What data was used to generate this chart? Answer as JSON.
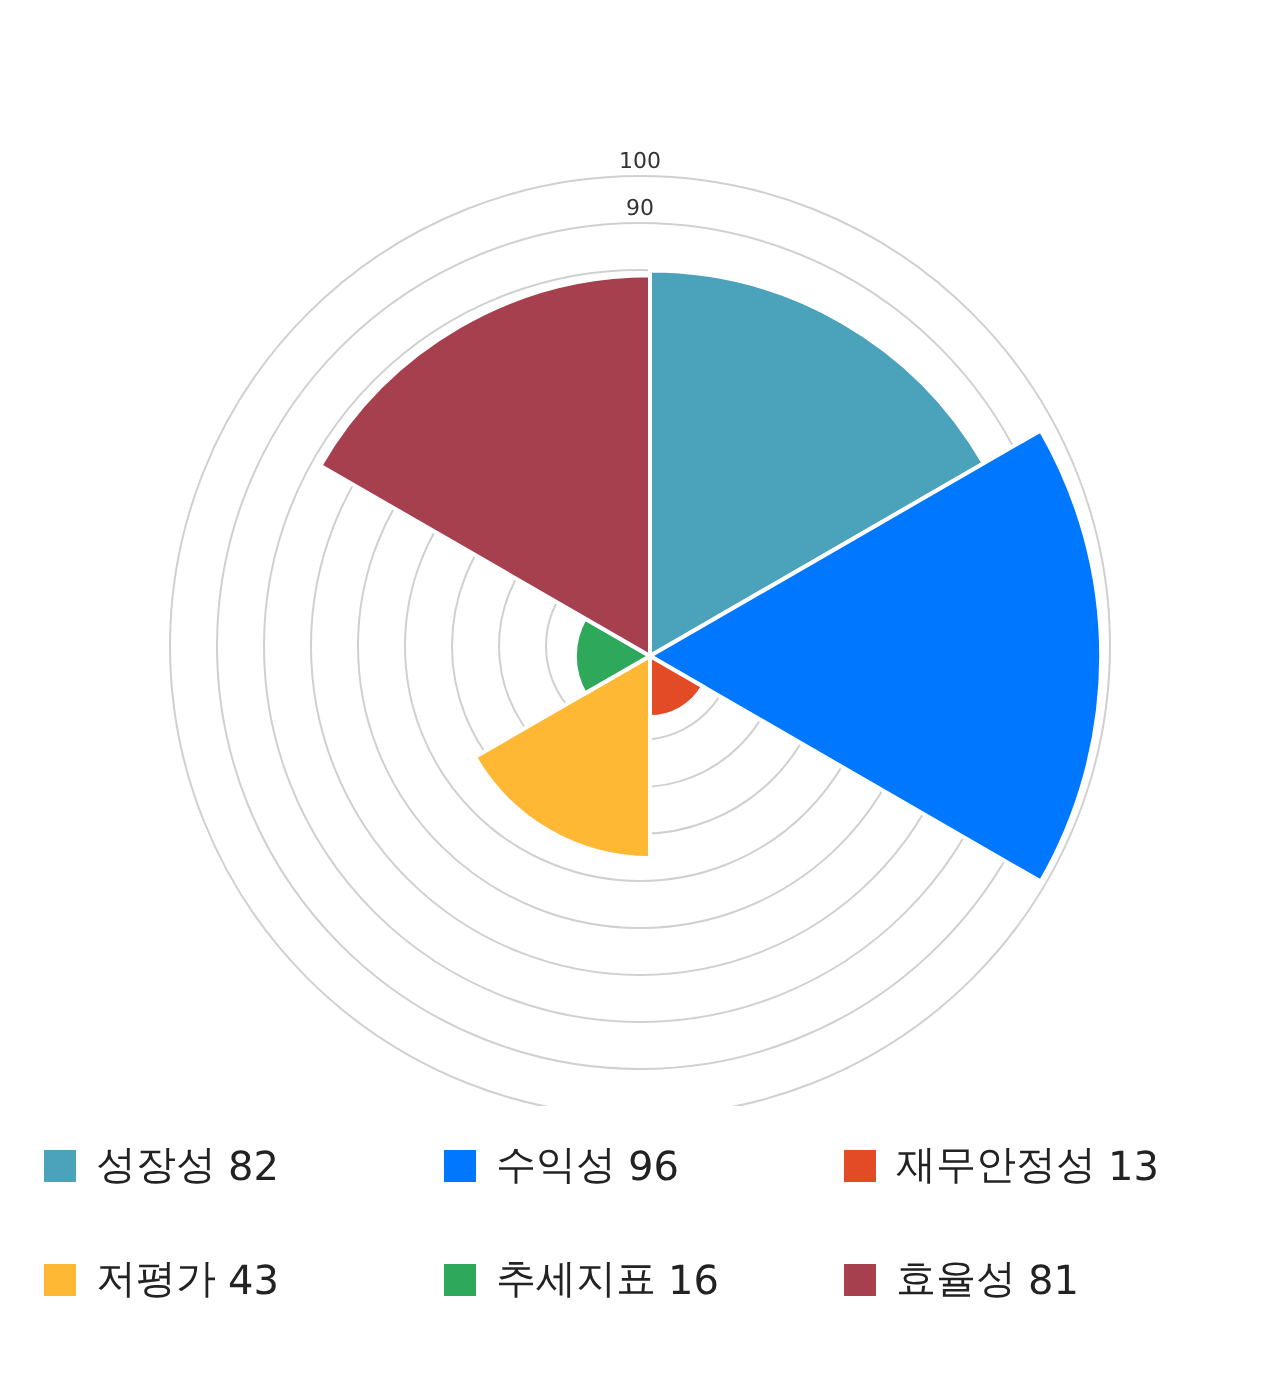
{
  "chart_data": {
    "type": "other",
    "categories": [
      "성장성",
      "수익성",
      "재무안정성",
      "저평가",
      "추세지표",
      "효율성"
    ],
    "values": [
      82,
      96,
      13,
      43,
      16,
      81
    ],
    "value_labels": [
      "82",
      "96",
      "13",
      "43",
      "16",
      "81"
    ],
    "colors": [
      "#4aa3ba",
      "#0077ff",
      "#e34a26",
      "#ffb833",
      "#2ea85a",
      "#a6404e"
    ],
    "annotations": [
      "100",
      "90"
    ]
  }
}
